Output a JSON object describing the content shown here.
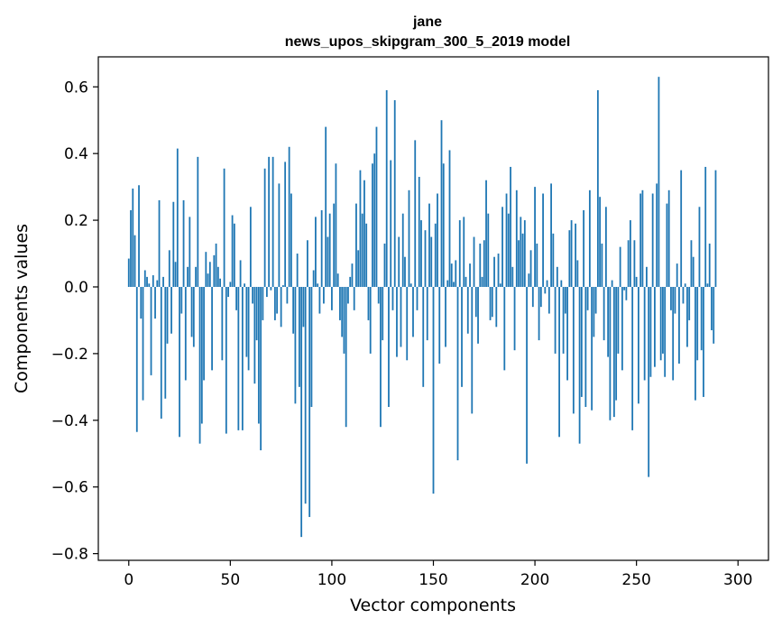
{
  "chart_data": {
    "type": "bar",
    "title": "jane",
    "subtitle": "news_upos_skipgram_300_5_2019 model",
    "xlabel": "Vector components",
    "ylabel": "Components values",
    "xlim": [
      -15,
      315
    ],
    "ylim": [
      -0.82,
      0.69
    ],
    "grid": false,
    "bar_color": "#1f77b4",
    "x_ticks": [
      0,
      50,
      100,
      150,
      200,
      250,
      300
    ],
    "x_tick_labels": [
      "0",
      "50",
      "100",
      "150",
      "200",
      "250",
      "300"
    ],
    "y_ticks": [
      -0.8,
      -0.6,
      -0.4,
      -0.2,
      0.0,
      0.2,
      0.4,
      0.6
    ],
    "y_tick_labels": [
      "−0.8",
      "−0.6",
      "−0.4",
      "−0.2",
      "0.0",
      "0.2",
      "0.4",
      "0.6"
    ],
    "values": [
      0.085,
      0.23,
      0.295,
      0.155,
      -0.435,
      0.305,
      -0.095,
      -0.34,
      0.05,
      0.03,
      0.01,
      -0.265,
      0.035,
      -0.095,
      0.02,
      0.26,
      -0.395,
      0.03,
      -0.335,
      -0.17,
      0.11,
      -0.14,
      0.255,
      0.075,
      0.415,
      -0.45,
      -0.08,
      0.26,
      -0.28,
      0.06,
      0.21,
      -0.15,
      -0.18,
      0.06,
      0.39,
      -0.47,
      -0.41,
      -0.28,
      0.105,
      0.04,
      0.075,
      -0.25,
      0.095,
      0.13,
      0.06,
      0.025,
      -0.22,
      0.355,
      -0.44,
      -0.03,
      0.015,
      0.215,
      0.19,
      -0.07,
      -0.43,
      0.08,
      -0.43,
      0.01,
      -0.21,
      -0.25,
      0.24,
      -0.05,
      -0.29,
      -0.16,
      -0.41,
      -0.49,
      -0.1,
      0.355,
      -0.03,
      0.39,
      -0.01,
      0.39,
      -0.1,
      -0.08,
      0.31,
      -0.12,
      0.005,
      0.375,
      -0.05,
      0.42,
      0.28,
      -0.14,
      -0.35,
      0.1,
      -0.3,
      -0.75,
      -0.12,
      -0.65,
      0.14,
      -0.69,
      -0.36,
      0.05,
      0.21,
      0.01,
      -0.08,
      0.23,
      -0.05,
      0.48,
      0.15,
      0.22,
      -0.07,
      0.25,
      0.37,
      0.04,
      -0.1,
      -0.15,
      -0.2,
      -0.42,
      -0.05,
      0.03,
      0.07,
      -0.07,
      0.25,
      0.11,
      0.35,
      0.22,
      0.32,
      0.19,
      -0.1,
      -0.2,
      0.37,
      0.4,
      0.48,
      -0.05,
      -0.42,
      -0.16,
      0.13,
      0.59,
      -0.36,
      0.38,
      -0.07,
      0.56,
      -0.21,
      0.15,
      -0.18,
      0.22,
      0.09,
      -0.22,
      0.29,
      0.01,
      -0.15,
      0.44,
      -0.07,
      0.33,
      0.2,
      -0.3,
      0.17,
      -0.16,
      0.25,
      0.15,
      -0.62,
      0.19,
      0.28,
      -0.23,
      0.5,
      0.37,
      -0.18,
      0.02,
      0.41,
      0.07,
      0.015,
      0.08,
      -0.52,
      0.2,
      -0.3,
      0.21,
      0.03,
      -0.14,
      0.07,
      -0.38,
      0.15,
      -0.09,
      -0.17,
      0.13,
      0.03,
      0.14,
      0.32,
      0.22,
      -0.1,
      -0.09,
      0.09,
      -0.12,
      0.1,
      0.01,
      0.24,
      -0.25,
      0.28,
      0.22,
      0.36,
      0.06,
      -0.19,
      0.29,
      0.14,
      0.21,
      0.16,
      0.2,
      -0.53,
      0.04,
      0.11,
      -0.06,
      0.3,
      0.13,
      -0.16,
      -0.06,
      0.28,
      -0.02,
      0.02,
      -0.08,
      0.31,
      0.16,
      -0.2,
      0.06,
      -0.45,
      0.02,
      -0.2,
      -0.08,
      -0.28,
      0.17,
      0.2,
      -0.38,
      0.19,
      0.08,
      -0.47,
      -0.33,
      0.23,
      -0.36,
      -0.07,
      0.29,
      -0.37,
      -0.15,
      -0.08,
      0.59,
      0.27,
      0.13,
      -0.16,
      0.24,
      -0.21,
      -0.4,
      0.02,
      -0.39,
      -0.34,
      -0.2,
      0.12,
      -0.25,
      -0.01,
      -0.04,
      0.14,
      0.2,
      -0.43,
      0.14,
      0.03,
      -0.35,
      0.28,
      0.29,
      -0.28,
      0.06,
      -0.57,
      -0.27,
      0.28,
      -0.24,
      0.31,
      0.63,
      -0.22,
      -0.2,
      -0.27,
      0.25,
      0.29,
      -0.07,
      -0.28,
      -0.08,
      0.07,
      -0.23,
      0.35,
      -0.05,
      0.01,
      -0.18,
      -0.1,
      0.14,
      0.09,
      -0.34,
      -0.22,
      0.24,
      -0.19,
      -0.33,
      0.36,
      0.01,
      0.13,
      -0.13,
      -0.17,
      0.35
    ]
  }
}
